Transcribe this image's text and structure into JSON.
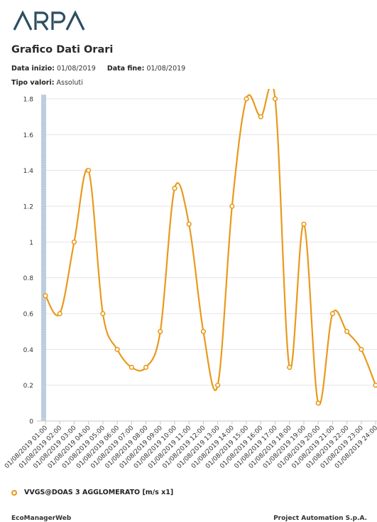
{
  "header": {
    "logo_text": "ARPA",
    "title": "Grafico Dati Orari",
    "start_label": "Data inizio:",
    "start_value": "01/08/2019",
    "end_label": "Data fine:",
    "end_value": "01/08/2019",
    "type_label": "Tipo valori:",
    "type_value": "Assoluti"
  },
  "colors": {
    "series": "#E89A1C",
    "axis_bar": "#BFD0E0",
    "grid": "#E4E4E4",
    "logo": "#2E4E61"
  },
  "chart_data": {
    "type": "line",
    "title": "",
    "xlabel": "",
    "ylabel": "",
    "ylim": [
      0,
      1.8
    ],
    "yticks": [
      "0",
      "0.2",
      "0.4",
      "0.6",
      "0.8",
      "1",
      "1.2",
      "1.4",
      "1.6",
      "1.8"
    ],
    "grid": true,
    "legend_position": "bottom-left",
    "categories": [
      "01/08/2019 01:00",
      "01/08/2019 02:00",
      "01/08/2019 03:00",
      "01/08/2019 04:00",
      "01/08/2019 05:00",
      "01/08/2019 06:00",
      "01/08/2019 07:00",
      "01/08/2019 08:00",
      "01/08/2019 09:00",
      "01/08/2019 10:00",
      "01/08/2019 11:00",
      "01/08/2019 12:00",
      "01/08/2019 13:00",
      "01/08/2019 14:00",
      "01/08/2019 15:00",
      "01/08/2019 16:00",
      "01/08/2019 17:00",
      "01/08/2019 18:00",
      "01/08/2019 19:00",
      "01/08/2019 20:00",
      "01/08/2019 21:00",
      "01/08/2019 22:00",
      "01/08/2019 23:00",
      "01/08/2019 24:00"
    ],
    "series": [
      {
        "name": "VVGS@DOAS 3 AGGLOMERATO [m/s x1]",
        "values": [
          0.7,
          0.6,
          1.0,
          1.4,
          0.6,
          0.4,
          0.3,
          0.3,
          0.5,
          1.3,
          1.1,
          0.5,
          0.2,
          1.2,
          1.8,
          1.7,
          1.8,
          0.3,
          1.1,
          0.1,
          0.6,
          0.5,
          0.4,
          0.2
        ]
      }
    ]
  },
  "footer": {
    "left": "EcoManagerWeb",
    "right": "Project Automation S.p.A."
  }
}
